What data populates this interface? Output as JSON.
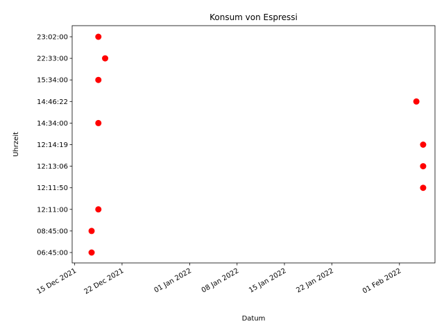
{
  "chart_data": {
    "type": "scatter",
    "title": "Konsum von Espressi",
    "xlabel": "Datum",
    "ylabel": "Uhrzeit",
    "x_axis_kind": "date",
    "xlim": [
      "2021-12-14T15:00",
      "2022-02-06T06:00"
    ],
    "x_ticks": [
      {
        "date": "2021-12-15",
        "label": "15 Dec 2021"
      },
      {
        "date": "2021-12-22",
        "label": "22 Dec 2021"
      },
      {
        "date": "2022-01-01",
        "label": "01 Jan 2022"
      },
      {
        "date": "2022-01-08",
        "label": "08 Jan 2022"
      },
      {
        "date": "2022-01-15",
        "label": "15 Jan 2022"
      },
      {
        "date": "2022-01-22",
        "label": "22 Jan 2022"
      },
      {
        "date": "2022-02-01",
        "label": "01 Feb 2022"
      }
    ],
    "y_categories": [
      "06:45:00",
      "08:45:00",
      "12:11:00",
      "12:11:50",
      "12:13:06",
      "12:14:19",
      "14:34:00",
      "14:46:22",
      "15:34:00",
      "22:33:00",
      "23:02:00"
    ],
    "points": [
      {
        "date": "2021-12-17",
        "time": "06:45:00"
      },
      {
        "date": "2021-12-17",
        "time": "08:45:00"
      },
      {
        "date": "2021-12-18",
        "time": "12:11:00"
      },
      {
        "date": "2021-12-18",
        "time": "14:34:00"
      },
      {
        "date": "2021-12-18",
        "time": "15:34:00"
      },
      {
        "date": "2021-12-19",
        "time": "22:33:00"
      },
      {
        "date": "2021-12-18",
        "time": "23:02:00"
      },
      {
        "date": "2022-02-03",
        "time": "14:46:22"
      },
      {
        "date": "2022-02-04",
        "time": "12:11:50"
      },
      {
        "date": "2022-02-04",
        "time": "12:13:06"
      },
      {
        "date": "2022-02-04",
        "time": "12:14:19"
      }
    ],
    "marker_color": "#ff0000",
    "grid": false,
    "legend": "none"
  }
}
